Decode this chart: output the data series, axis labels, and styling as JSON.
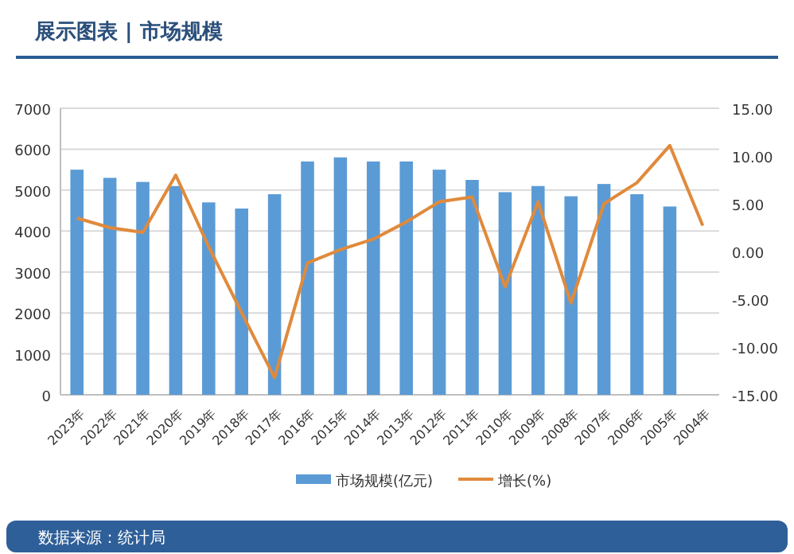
{
  "chart_data": {
    "type": "bar",
    "title": "展示图表 | 市场规模",
    "categories": [
      "2023年",
      "2022年",
      "2021年",
      "2020年",
      "2019年",
      "2018年",
      "2017年",
      "2016年",
      "2015年",
      "2014年",
      "2013年",
      "2012年",
      "2011年",
      "2010年",
      "2009年",
      "2008年",
      "2007年",
      "2006年",
      "2005年",
      "2004年"
    ],
    "series": [
      {
        "name": "市场规模(亿元)",
        "color": "#5b9bd5",
        "values": [
          5500,
          5300,
          5200,
          5100,
          4700,
          4550,
          4900,
          5700,
          5800,
          5700,
          5700,
          5500,
          5250,
          4950,
          5100,
          4850,
          5150,
          4900,
          4600,
          null
        ]
      },
      {
        "name": "增长(%)",
        "type": "line",
        "axis": "y2",
        "color": "#e08a3c",
        "values": [
          3.5,
          2.5,
          2.0,
          8.0,
          0.5,
          -6.4,
          -13.2,
          -1.2,
          0.2,
          1.3,
          3.1,
          5.2,
          5.7,
          -3.7,
          5.2,
          -5.4,
          5.0,
          7.2,
          11.1,
          2.7
        ]
      }
    ],
    "ylim": [
      0,
      7000
    ],
    "yticks": [
      0,
      1000,
      2000,
      3000,
      4000,
      5000,
      6000,
      7000
    ],
    "y2lim": [
      -15,
      15
    ],
    "y2ticks": [
      {
        "value": 15,
        "label": "15.00"
      },
      {
        "value": 10,
        "label": "10.00"
      },
      {
        "value": 5,
        "label": "5.00"
      },
      {
        "value": 0,
        "label": "0.00"
      },
      {
        "value": -5,
        "label": "-5.00"
      },
      {
        "value": -10,
        "label": "-10.00"
      },
      {
        "value": -15,
        "label": "-15.00"
      }
    ],
    "grid": "y",
    "legend": "bottom",
    "marker": "none",
    "line_style": "solid",
    "annotations": [
      "数据来源：统计局"
    ]
  }
}
